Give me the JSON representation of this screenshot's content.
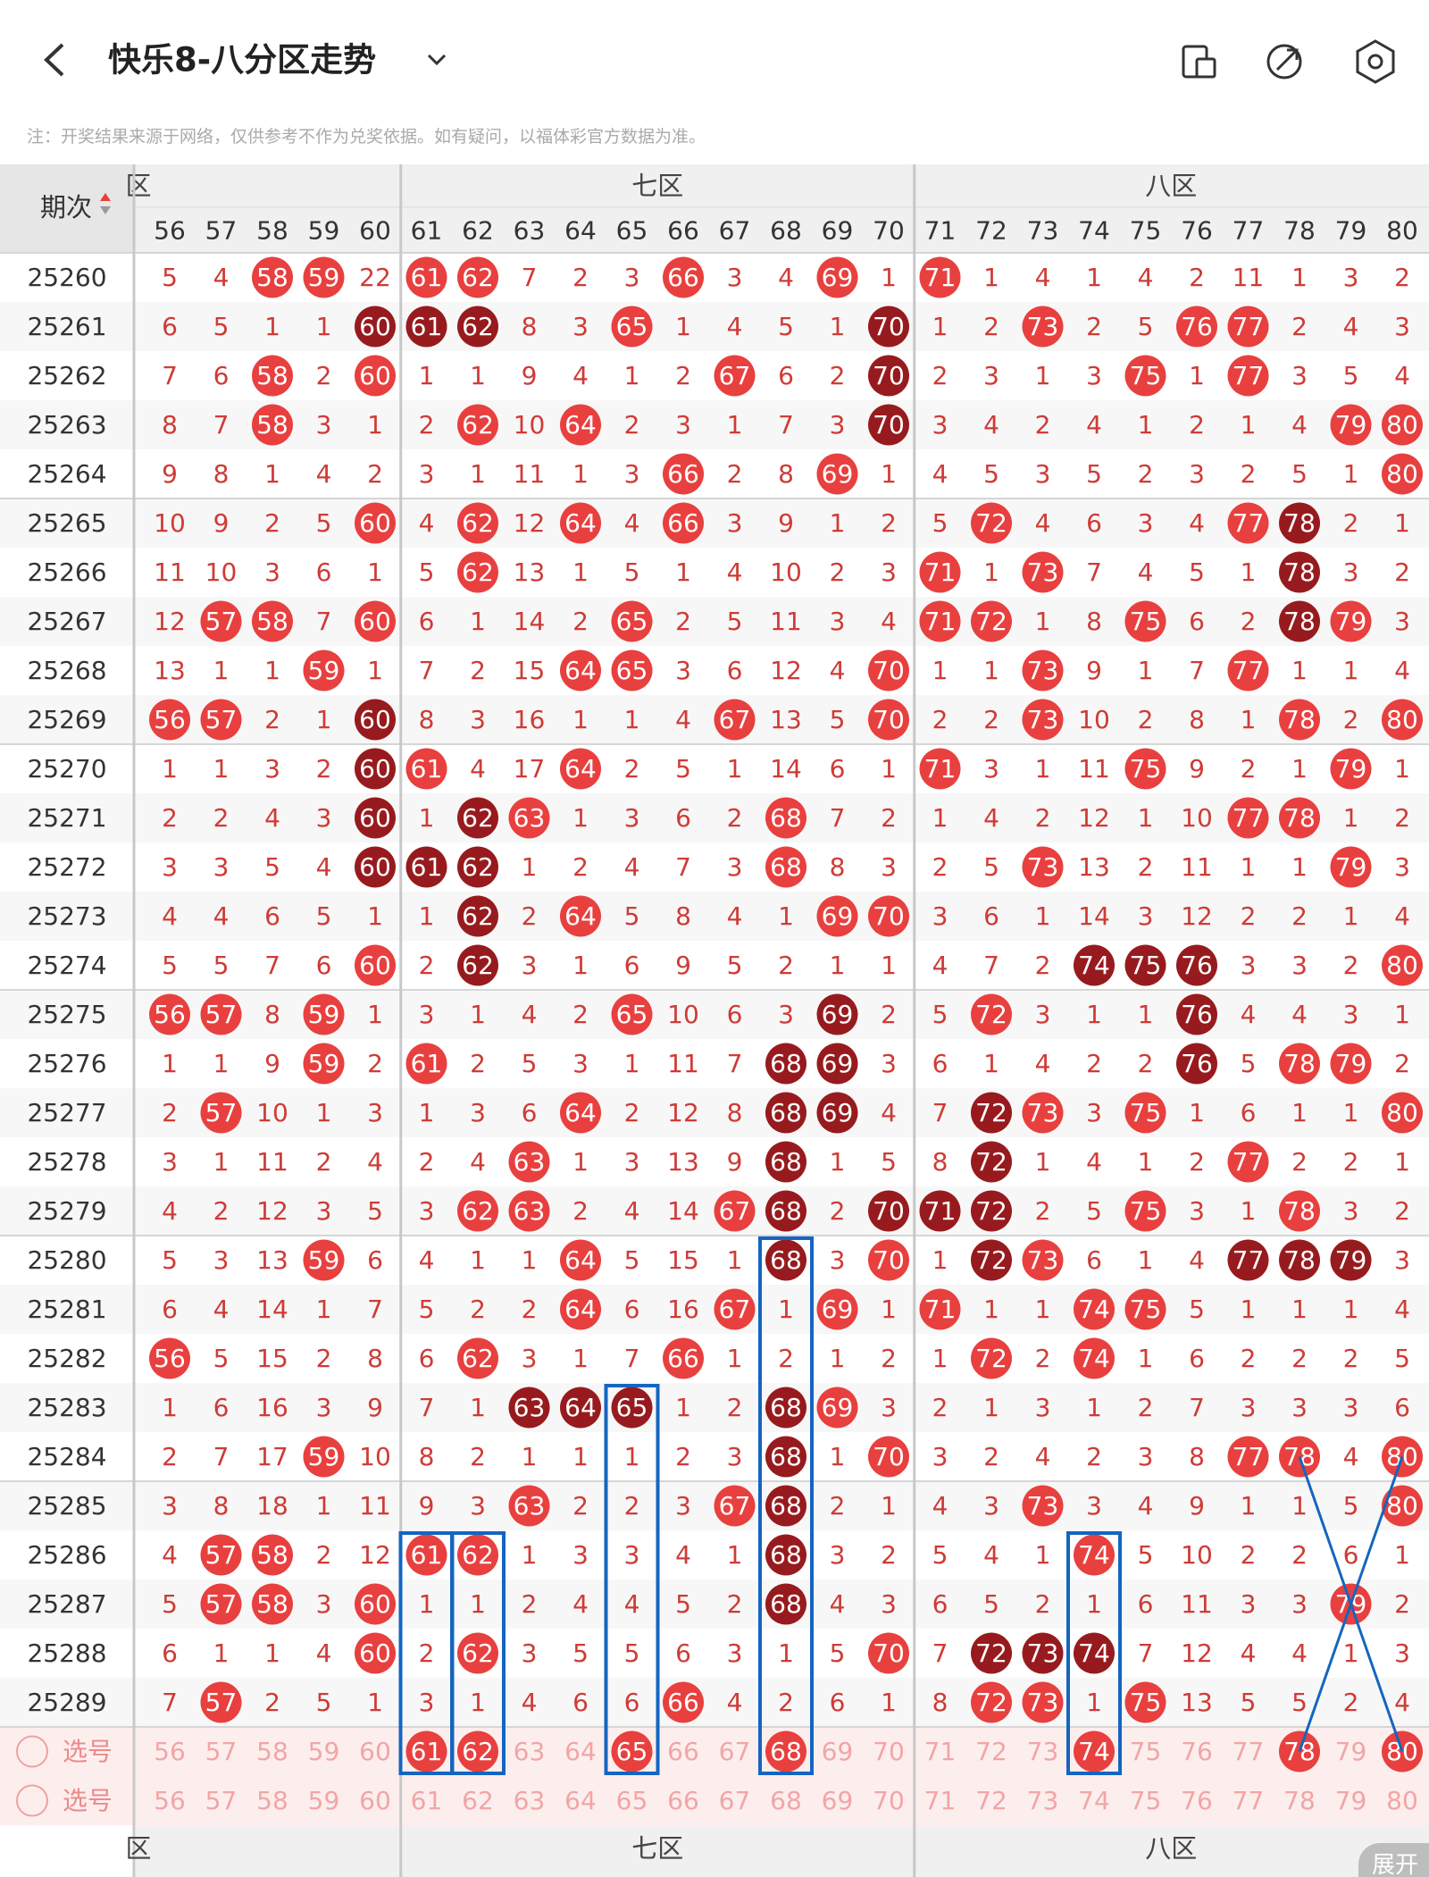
{
  "header": {
    "title": "快乐8-八分区走势",
    "note": "注：开奖结果来源于网络，仅供参考不作为兑奖依据。如有疑问，以福体彩官方数据为准。"
  },
  "table": {
    "issue_header": "期次",
    "zones": [
      "区",
      "七区",
      "八区"
    ],
    "columns": [
      56,
      57,
      58,
      59,
      60,
      61,
      62,
      63,
      64,
      65,
      66,
      67,
      68,
      69,
      70,
      71,
      72,
      73,
      74,
      75,
      76,
      77,
      78,
      79,
      80
    ],
    "rows": [
      {
        "issue": "25260",
        "values": [
          5,
          4,
          58,
          59,
          22,
          61,
          62,
          7,
          2,
          3,
          66,
          3,
          4,
          69,
          1,
          71,
          1,
          4,
          1,
          4,
          2,
          11,
          1,
          3,
          2
        ],
        "style": "..rr.rr...r..r.r........."
      },
      {
        "issue": "25261",
        "values": [
          6,
          5,
          1,
          1,
          60,
          61,
          62,
          8,
          3,
          65,
          1,
          4,
          5,
          1,
          70,
          1,
          2,
          73,
          2,
          5,
          76,
          77,
          2,
          4,
          3
        ],
        "style": "....ddd..r....d..r..rr..."
      },
      {
        "issue": "25262",
        "values": [
          7,
          6,
          58,
          2,
          60,
          1,
          1,
          9,
          4,
          1,
          2,
          67,
          6,
          2,
          70,
          2,
          3,
          1,
          3,
          75,
          1,
          77,
          3,
          5,
          4
        ],
        "style": "..r.r......r..d....r.r..."
      },
      {
        "issue": "25263",
        "values": [
          8,
          7,
          58,
          3,
          1,
          2,
          62,
          10,
          64,
          2,
          3,
          1,
          7,
          3,
          70,
          3,
          4,
          2,
          4,
          1,
          2,
          1,
          4,
          79,
          80
        ],
        "style": "..r...r.r.....d........rr"
      },
      {
        "issue": "25264",
        "values": [
          9,
          8,
          1,
          4,
          2,
          3,
          1,
          11,
          1,
          3,
          66,
          2,
          8,
          69,
          1,
          4,
          5,
          3,
          5,
          2,
          3,
          2,
          5,
          1,
          80
        ],
        "style": "..........r..r..........r"
      },
      {
        "issue": "25265",
        "values": [
          10,
          9,
          2,
          5,
          60,
          4,
          62,
          12,
          64,
          4,
          66,
          3,
          9,
          1,
          2,
          5,
          72,
          4,
          6,
          3,
          4,
          77,
          78,
          2,
          1
        ],
        "style": "....r.r.r.r.....r....rd.."
      },
      {
        "issue": "25266",
        "values": [
          11,
          10,
          3,
          6,
          1,
          5,
          62,
          13,
          1,
          5,
          1,
          4,
          10,
          2,
          3,
          71,
          1,
          73,
          7,
          4,
          5,
          1,
          78,
          3,
          2
        ],
        "style": "......r........r.r....d.."
      },
      {
        "issue": "25267",
        "values": [
          12,
          57,
          58,
          7,
          60,
          6,
          1,
          14,
          2,
          65,
          2,
          5,
          11,
          3,
          4,
          71,
          72,
          1,
          8,
          75,
          6,
          2,
          78,
          79,
          3
        ],
        "style": ".rr.r....r.....rr..r..dr."
      },
      {
        "issue": "25268",
        "values": [
          13,
          1,
          1,
          59,
          1,
          7,
          2,
          15,
          64,
          65,
          3,
          6,
          12,
          4,
          70,
          1,
          1,
          73,
          9,
          1,
          7,
          77,
          1,
          1,
          4
        ],
        "style": "...r....rr....r..r...r..."
      },
      {
        "issue": "25269",
        "values": [
          56,
          57,
          2,
          1,
          60,
          8,
          3,
          16,
          1,
          1,
          4,
          67,
          13,
          5,
          70,
          2,
          2,
          73,
          10,
          2,
          8,
          1,
          78,
          2,
          80
        ],
        "style": "rr..d......r..r..r....r.r"
      },
      {
        "issue": "25270",
        "values": [
          1,
          1,
          3,
          2,
          60,
          61,
          4,
          17,
          64,
          2,
          5,
          1,
          14,
          6,
          1,
          71,
          3,
          1,
          11,
          75,
          9,
          2,
          1,
          79,
          1
        ],
        "style": "....dr..r......r...r...r."
      },
      {
        "issue": "25271",
        "values": [
          2,
          2,
          4,
          3,
          60,
          1,
          62,
          63,
          1,
          3,
          6,
          2,
          68,
          7,
          2,
          1,
          4,
          2,
          12,
          1,
          10,
          77,
          78,
          1,
          2
        ],
        "style": "....d.dr....r........rr.."
      },
      {
        "issue": "25272",
        "values": [
          3,
          3,
          5,
          4,
          60,
          61,
          62,
          1,
          2,
          4,
          7,
          3,
          68,
          8,
          3,
          2,
          5,
          73,
          13,
          2,
          11,
          1,
          1,
          79,
          3
        ],
        "style": "....ddd.....r....r.....r."
      },
      {
        "issue": "25273",
        "values": [
          4,
          4,
          6,
          5,
          1,
          1,
          62,
          2,
          64,
          5,
          8,
          4,
          1,
          69,
          70,
          3,
          6,
          1,
          14,
          3,
          12,
          2,
          2,
          1,
          4
        ],
        "style": "......d.r....rr.........."
      },
      {
        "issue": "25274",
        "values": [
          5,
          5,
          7,
          6,
          60,
          2,
          62,
          3,
          1,
          6,
          9,
          5,
          2,
          1,
          1,
          4,
          7,
          2,
          74,
          75,
          76,
          3,
          3,
          2,
          80
        ],
        "style": "....r.d...........ddd...r"
      },
      {
        "issue": "25275",
        "values": [
          56,
          57,
          8,
          59,
          1,
          3,
          1,
          4,
          2,
          65,
          10,
          6,
          3,
          69,
          2,
          5,
          72,
          3,
          1,
          1,
          76,
          4,
          4,
          3,
          1
        ],
        "style": "rr.r.....r...d..r...d...."
      },
      {
        "issue": "25276",
        "values": [
          1,
          1,
          9,
          59,
          2,
          61,
          2,
          5,
          3,
          1,
          11,
          7,
          68,
          69,
          3,
          6,
          1,
          4,
          2,
          2,
          76,
          5,
          78,
          79,
          2
        ],
        "style": "...r.r......dd......d.rr."
      },
      {
        "issue": "25277",
        "values": [
          2,
          57,
          10,
          1,
          3,
          1,
          3,
          6,
          64,
          2,
          12,
          8,
          68,
          69,
          4,
          7,
          72,
          73,
          3,
          75,
          1,
          6,
          1,
          1,
          80
        ],
        "style": ".r......r...dd..dr.r....r"
      },
      {
        "issue": "25278",
        "values": [
          3,
          1,
          11,
          2,
          4,
          2,
          4,
          63,
          1,
          3,
          13,
          9,
          68,
          1,
          5,
          8,
          72,
          1,
          4,
          1,
          2,
          77,
          2,
          2,
          1
        ],
        "style": ".......r....d...d....r..."
      },
      {
        "issue": "25279",
        "values": [
          4,
          2,
          12,
          3,
          5,
          3,
          62,
          63,
          2,
          4,
          14,
          67,
          68,
          2,
          70,
          71,
          72,
          2,
          5,
          75,
          3,
          1,
          78,
          3,
          2
        ],
        "style": "......rr...rd.ddd..r..r.."
      },
      {
        "issue": "25280",
        "values": [
          5,
          3,
          13,
          59,
          6,
          4,
          1,
          1,
          64,
          5,
          15,
          1,
          68,
          3,
          70,
          1,
          72,
          73,
          6,
          1,
          4,
          77,
          78,
          79,
          3
        ],
        "style": "...r....r...d.r.dr...ddd."
      },
      {
        "issue": "25281",
        "values": [
          6,
          4,
          14,
          1,
          7,
          5,
          2,
          2,
          64,
          6,
          16,
          67,
          1,
          69,
          1,
          71,
          1,
          1,
          74,
          75,
          5,
          1,
          1,
          1,
          4
        ],
        "style": "........r..r.r.r..rr....."
      },
      {
        "issue": "25282",
        "values": [
          56,
          5,
          15,
          2,
          8,
          6,
          62,
          3,
          1,
          7,
          66,
          1,
          2,
          1,
          2,
          1,
          72,
          2,
          74,
          1,
          6,
          2,
          2,
          2,
          5
        ],
        "style": "r.....r...r.....r.r......"
      },
      {
        "issue": "25283",
        "values": [
          1,
          6,
          16,
          3,
          9,
          7,
          1,
          63,
          64,
          65,
          1,
          2,
          68,
          69,
          3,
          2,
          1,
          3,
          1,
          2,
          7,
          3,
          3,
          3,
          6
        ],
        "style": ".......ddd..dr..........."
      },
      {
        "issue": "25284",
        "values": [
          2,
          7,
          17,
          59,
          10,
          8,
          2,
          1,
          1,
          1,
          2,
          3,
          68,
          1,
          70,
          3,
          2,
          4,
          2,
          3,
          8,
          77,
          78,
          4,
          80
        ],
        "style": "...r........d.r......rr.r"
      },
      {
        "issue": "25285",
        "values": [
          3,
          8,
          18,
          1,
          11,
          9,
          3,
          63,
          2,
          2,
          3,
          67,
          68,
          2,
          1,
          4,
          3,
          73,
          3,
          4,
          9,
          1,
          1,
          5,
          80
        ],
        "style": ".......r...rd....r......r"
      },
      {
        "issue": "25286",
        "values": [
          4,
          57,
          58,
          2,
          12,
          61,
          62,
          1,
          3,
          3,
          4,
          1,
          68,
          3,
          2,
          5,
          4,
          1,
          74,
          5,
          10,
          2,
          2,
          6,
          1
        ],
        "style": ".rr..rr.....d.....r......"
      },
      {
        "issue": "25287",
        "values": [
          5,
          57,
          58,
          3,
          60,
          1,
          1,
          2,
          4,
          4,
          5,
          2,
          68,
          4,
          3,
          6,
          5,
          2,
          1,
          6,
          11,
          3,
          3,
          79,
          2
        ],
        "style": ".rr.r.......d..........r."
      },
      {
        "issue": "25288",
        "values": [
          6,
          1,
          1,
          4,
          60,
          2,
          62,
          3,
          5,
          5,
          6,
          3,
          1,
          5,
          70,
          7,
          72,
          73,
          74,
          7,
          12,
          4,
          4,
          1,
          3
        ],
        "style": "....r.r.......r.ddd......"
      },
      {
        "issue": "25289",
        "values": [
          7,
          57,
          2,
          5,
          1,
          3,
          1,
          4,
          6,
          6,
          66,
          4,
          2,
          6,
          1,
          8,
          72,
          73,
          1,
          75,
          13,
          5,
          5,
          2,
          4
        ],
        "style": ".r........r.....rr.r....."
      }
    ],
    "select_rows": [
      {
        "label": "选号",
        "values": [
          56,
          57,
          58,
          59,
          60,
          61,
          62,
          63,
          64,
          65,
          66,
          67,
          68,
          69,
          70,
          71,
          72,
          73,
          74,
          75,
          76,
          77,
          78,
          79,
          80
        ],
        "style": ".....rr..r..r.....r...r.r"
      },
      {
        "label": "选号",
        "values": [
          56,
          57,
          58,
          59,
          60,
          61,
          62,
          63,
          64,
          65,
          66,
          67,
          68,
          69,
          70,
          71,
          72,
          73,
          74,
          75,
          76,
          77,
          78,
          79,
          80
        ],
        "style": "........................."
      }
    ],
    "expand": "展开"
  }
}
